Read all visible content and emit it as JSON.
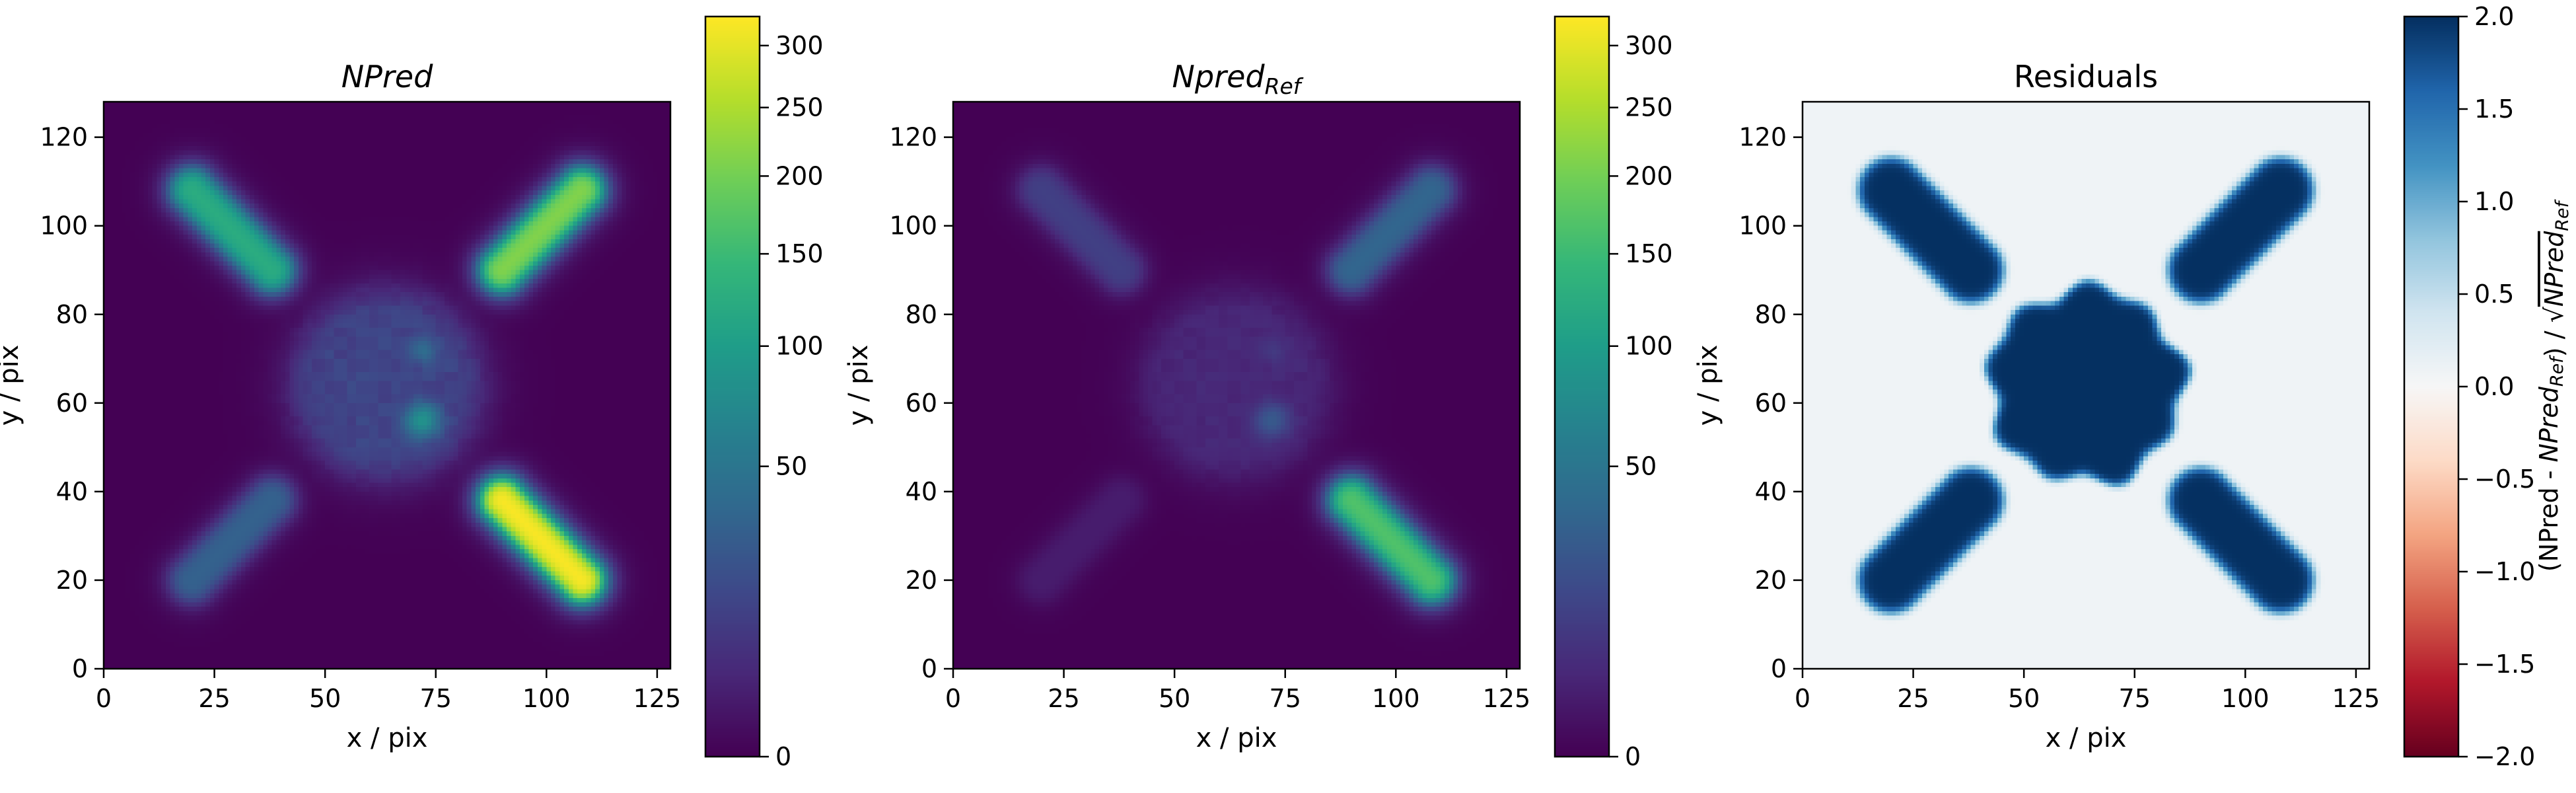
{
  "chart_data": [
    {
      "type": "heatmap",
      "title": "NPred",
      "title_style": "italic",
      "xlabel": "x / pix",
      "ylabel": "y / pix",
      "xlim": [
        0,
        128
      ],
      "ylim": [
        0,
        128
      ],
      "xticks": [
        0,
        25,
        50,
        75,
        100,
        125
      ],
      "yticks": [
        0,
        20,
        40,
        60,
        80,
        100,
        120
      ],
      "colormap": "viridis",
      "colorbar": {
        "scale": "sqrt",
        "range": [
          0,
          325
        ],
        "ticks": [
          0,
          50,
          100,
          150,
          200,
          250,
          300
        ],
        "label": ""
      },
      "features": [
        {
          "shape": "capsule",
          "from": [
            20,
            108
          ],
          "to": [
            38,
            90
          ],
          "amplitude": 125
        },
        {
          "shape": "capsule",
          "from": [
            90,
            90
          ],
          "to": [
            108,
            108
          ],
          "amplitude": 215
        },
        {
          "shape": "capsule",
          "from": [
            20,
            20
          ],
          "to": [
            38,
            38
          ],
          "amplitude": 32
        },
        {
          "shape": "capsule",
          "from": [
            90,
            38
          ],
          "to": [
            108,
            20
          ],
          "amplitude": 325
        },
        {
          "shape": "disk",
          "center": [
            64,
            64
          ],
          "radius": 20,
          "amplitude": 14
        },
        {
          "shape": "blob",
          "center": [
            72,
            56
          ],
          "radius": 2.5,
          "amplitude": 70
        },
        {
          "shape": "blob",
          "center": [
            72,
            72
          ],
          "radius": 2,
          "amplitude": 26
        }
      ]
    },
    {
      "type": "heatmap",
      "title": "Npred",
      "title_subscript": "Ref",
      "title_style": "italic",
      "xlabel": "x / pix",
      "ylabel": "y / pix",
      "xlim": [
        0,
        128
      ],
      "ylim": [
        0,
        128
      ],
      "xticks": [
        0,
        25,
        50,
        75,
        100,
        125
      ],
      "yticks": [
        0,
        20,
        40,
        60,
        80,
        100,
        120
      ],
      "colormap": "viridis",
      "colorbar": {
        "scale": "sqrt",
        "range": [
          0,
          325
        ],
        "ticks": [
          0,
          50,
          100,
          150,
          200,
          250,
          300
        ],
        "label": ""
      },
      "features": [
        {
          "shape": "capsule",
          "from": [
            20,
            108
          ],
          "to": [
            38,
            90
          ],
          "amplitude": 12
        },
        {
          "shape": "capsule",
          "from": [
            90,
            90
          ],
          "to": [
            108,
            108
          ],
          "amplitude": 35
        },
        {
          "shape": "capsule",
          "from": [
            20,
            20
          ],
          "to": [
            38,
            38
          ],
          "amplitude": 2
        },
        {
          "shape": "capsule",
          "from": [
            90,
            38
          ],
          "to": [
            108,
            20
          ],
          "amplitude": 170
        },
        {
          "shape": "disk",
          "center": [
            64,
            64
          ],
          "radius": 20,
          "amplitude": 4
        },
        {
          "shape": "blob",
          "center": [
            72,
            56
          ],
          "radius": 2.5,
          "amplitude": 22
        },
        {
          "shape": "blob",
          "center": [
            72,
            72
          ],
          "radius": 2,
          "amplitude": 5
        }
      ]
    },
    {
      "type": "heatmap",
      "title": "Residuals",
      "title_style": "normal",
      "xlabel": "x / pix",
      "ylabel": "y / pix",
      "xlim": [
        0,
        128
      ],
      "ylim": [
        0,
        128
      ],
      "xticks": [
        0,
        25,
        50,
        75,
        100,
        125
      ],
      "yticks": [
        0,
        20,
        40,
        60,
        80,
        100,
        120
      ],
      "colormap": "RdBu",
      "colorbar": {
        "scale": "linear",
        "range": [
          -2.0,
          2.0
        ],
        "ticks": [
          -2.0,
          -1.5,
          -1.0,
          -0.5,
          0.0,
          0.5,
          1.0,
          1.5,
          2.0
        ],
        "tick_labels": [
          "−2.0",
          "−1.5",
          "−1.0",
          "−0.5",
          "0.0",
          "0.5",
          "1.0",
          "1.5",
          "2.0"
        ],
        "label": "(NPred - NPred_Ref) / √NPred_Ref",
        "label_parts": {
          "a": "(NPred - ",
          "b": "NPred",
          "b_sub": "Ref",
          "c": ") / ",
          "d": "√",
          "e": "NPred",
          "e_sub": "Ref"
        }
      },
      "background_value": 0.08,
      "features": [
        {
          "shape": "capsule",
          "from": [
            20,
            108
          ],
          "to": [
            38,
            90
          ],
          "amplitude": 2.0
        },
        {
          "shape": "capsule",
          "from": [
            90,
            90
          ],
          "to": [
            108,
            108
          ],
          "amplitude": 2.0
        },
        {
          "shape": "capsule",
          "from": [
            20,
            20
          ],
          "to": [
            38,
            38
          ],
          "amplitude": 2.0
        },
        {
          "shape": "capsule",
          "from": [
            90,
            38
          ],
          "to": [
            108,
            20
          ],
          "amplitude": 2.0
        },
        {
          "shape": "disk",
          "center": [
            64,
            64
          ],
          "radius": 22,
          "amplitude": 2.0
        }
      ]
    }
  ]
}
